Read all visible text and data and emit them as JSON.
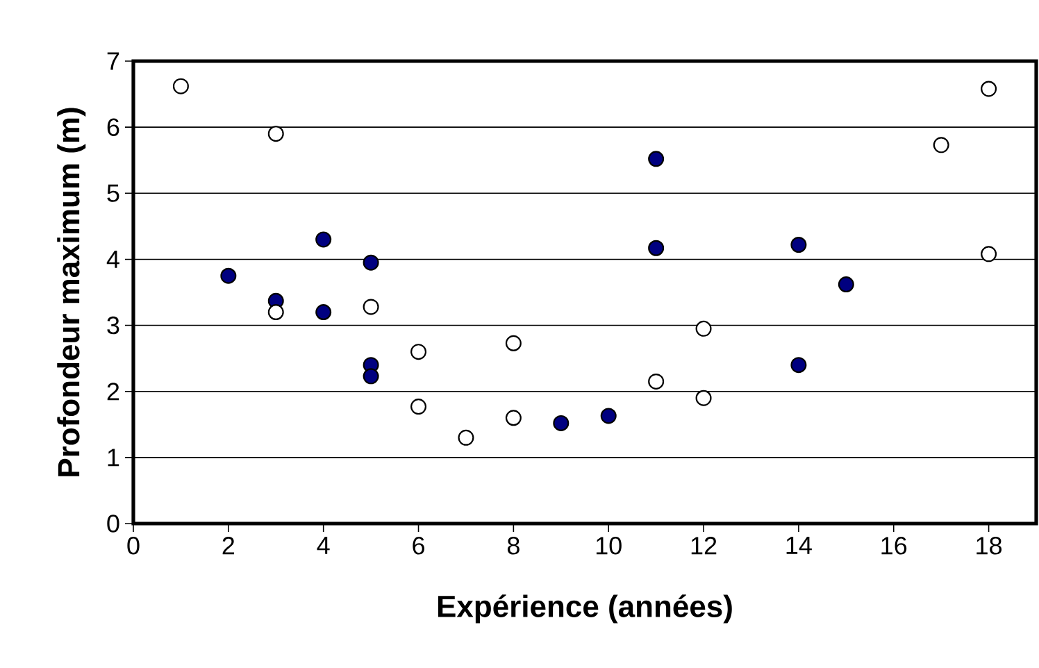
{
  "chart_data": {
    "type": "scatter",
    "xlabel": "Expérience (années)",
    "ylabel": "Profondeur maximum (m)",
    "xlim": [
      0,
      19
    ],
    "xticks": [
      0,
      2,
      4,
      6,
      8,
      10,
      12,
      14,
      16,
      18
    ],
    "ylim": [
      0,
      7
    ],
    "yticks": [
      0,
      1,
      2,
      3,
      4,
      5,
      6,
      7
    ],
    "grid": "y",
    "marker": "circle",
    "series": [
      {
        "color": "#000080",
        "x": [
          2,
          3,
          4,
          4,
          5,
          5,
          5,
          9,
          10,
          11,
          11,
          14,
          14,
          15
        ],
        "values": [
          3.75,
          3.37,
          4.3,
          3.2,
          3.95,
          2.4,
          2.23,
          1.52,
          1.63,
          5.52,
          4.17,
          4.22,
          2.4,
          3.62
        ]
      },
      {
        "color": "#ffffff",
        "x": [
          1,
          3,
          3,
          5,
          6,
          6,
          7,
          8,
          8,
          11,
          12,
          12,
          17,
          18,
          18
        ],
        "values": [
          6.62,
          5.9,
          3.2,
          3.28,
          2.6,
          1.77,
          1.3,
          2.73,
          1.6,
          2.15,
          2.95,
          1.9,
          5.73,
          6.58,
          4.08
        ]
      }
    ]
  }
}
